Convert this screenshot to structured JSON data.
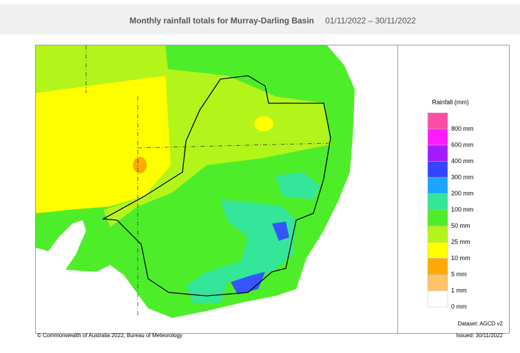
{
  "header": {
    "title": "Monthly rainfall totals for Murray-Darling Basin",
    "period": "01/11/2022 – 30/11/2022"
  },
  "legend": {
    "title": "Rainfall (mm)",
    "entries": [
      {
        "label": "800 mm",
        "color": "#ff4da6"
      },
      {
        "label": "600 mm",
        "color": "#ff1aff"
      },
      {
        "label": "400 mm",
        "color": "#a61aff"
      },
      {
        "label": "300 mm",
        "color": "#3344ff"
      },
      {
        "label": "200 mm",
        "color": "#1aa6ff"
      },
      {
        "label": "100 mm",
        "color": "#33e699"
      },
      {
        "label": "50 mm",
        "color": "#4ded2a"
      },
      {
        "label": "25 mm",
        "color": "#b3f51a"
      },
      {
        "label": "10 mm",
        "color": "#ffff00"
      },
      {
        "label": "5 mm",
        "color": "#ffaa00"
      },
      {
        "label": "1 mm",
        "color": "#ffc266"
      },
      {
        "label": "0 mm",
        "color": "#ffffff"
      }
    ]
  },
  "footer": {
    "dataset": "Dataset: AGCD v2",
    "copyright": "© Commonwealth of Australia 2022, Bureau of Meteorology",
    "issued": "Issued: 30/11/2022"
  }
}
